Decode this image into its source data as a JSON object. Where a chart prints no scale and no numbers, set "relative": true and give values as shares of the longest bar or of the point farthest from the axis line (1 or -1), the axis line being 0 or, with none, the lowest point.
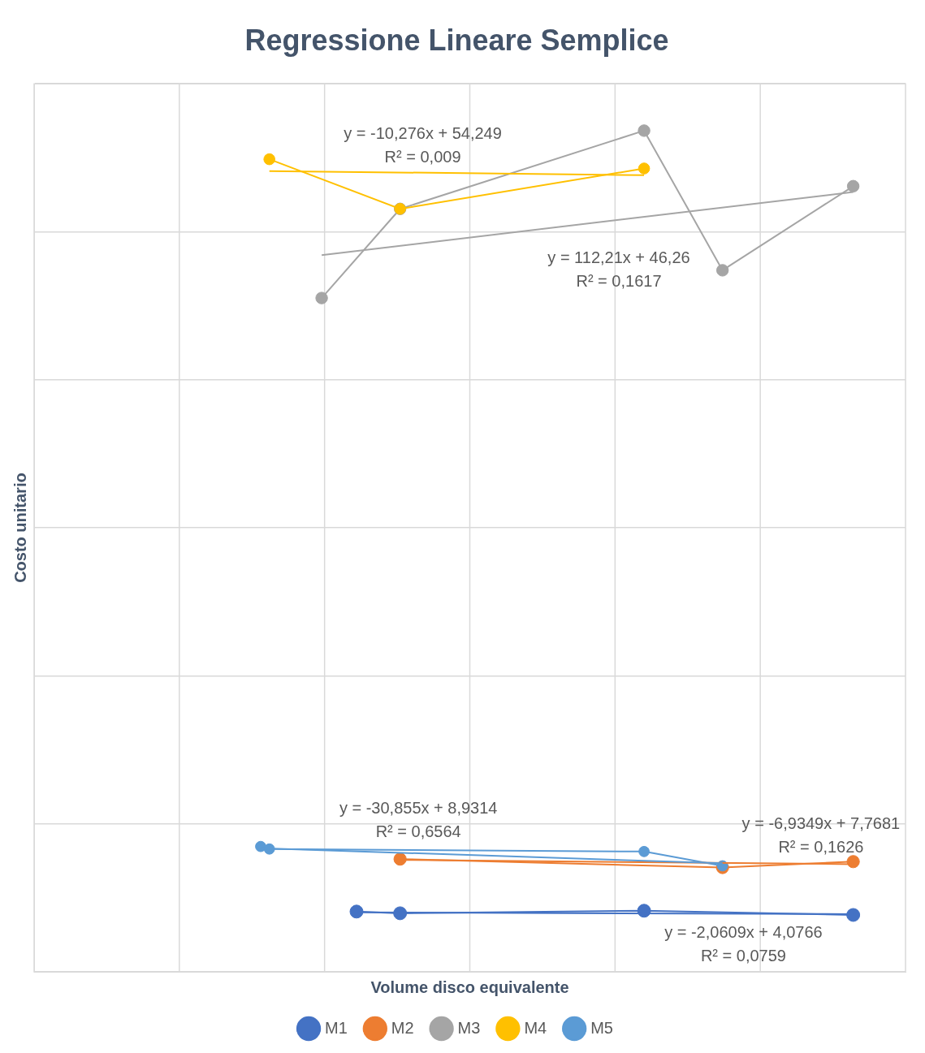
{
  "chart_data": {
    "type": "line",
    "title": "Regressione Lineare Semplice",
    "xlabel": "Volume disco equivalente",
    "ylabel": "Costo unitario",
    "relative": true,
    "grid": true,
    "legend": "bottom",
    "marker": "circle",
    "line_style": "solid",
    "categories": [
      null,
      null,
      null,
      null,
      null,
      null,
      null,
      null,
      null,
      null,
      null,
      null,
      null,
      null,
      null,
      null,
      null,
      null,
      null,
      null,
      null,
      null,
      null,
      null,
      null,
      null,
      null,
      null,
      null,
      null,
      null,
      null,
      null,
      null,
      null,
      null,
      null,
      null,
      null,
      null,
      null,
      null,
      null,
      null,
      null,
      null,
      null,
      null,
      null,
      null,
      null,
      null,
      null,
      null,
      null,
      null,
      null,
      null,
      null,
      null,
      null,
      null,
      null,
      null,
      null,
      null,
      null,
      null,
      null,
      null,
      null,
      null,
      null,
      null,
      null,
      null,
      null,
      null,
      null,
      null,
      null,
      null,
      null,
      null,
      null,
      null,
      null,
      null,
      null,
      null,
      null,
      null,
      null,
      null,
      null,
      null,
      null,
      null,
      null,
      null,
      null
    ],
    "series": [
      {
        "name": "M1",
        "color": "#4472c4",
        "values": [
          null,
          null,
          null,
          null,
          null,
          null,
          null,
          null,
          null,
          null,
          null,
          null,
          null,
          null,
          null,
          null,
          null,
          null,
          null,
          null,
          null,
          null,
          null,
          null,
          null,
          null,
          null,
          null,
          null,
          null,
          null,
          null,
          null,
          null,
          null,
          null,
          null,
          0.0716,
          null,
          null,
          null,
          null,
          0.0696,
          null,
          null,
          null,
          null,
          null,
          null,
          null,
          null,
          null,
          null,
          null,
          null,
          null,
          null,
          null,
          null,
          null,
          null,
          null,
          null,
          null,
          null,
          null,
          null,
          null,
          null,
          null,
          0.0726,
          null,
          null,
          null,
          null,
          null,
          null,
          null,
          null,
          null,
          null,
          null,
          null,
          null,
          null,
          null,
          null,
          null,
          null,
          null,
          null,
          null,
          null,
          null,
          0.0676,
          null,
          null,
          null,
          null,
          null,
          null
        ]
      },
      {
        "name": "M2",
        "color": "#ed7d31",
        "values": [
          null,
          null,
          null,
          null,
          null,
          null,
          null,
          null,
          null,
          null,
          null,
          null,
          null,
          null,
          null,
          null,
          null,
          null,
          null,
          null,
          null,
          null,
          null,
          null,
          null,
          null,
          null,
          null,
          null,
          null,
          null,
          null,
          null,
          null,
          null,
          null,
          null,
          null,
          null,
          null,
          null,
          null,
          0.134,
          null,
          null,
          null,
          null,
          null,
          null,
          null,
          null,
          null,
          null,
          null,
          null,
          null,
          null,
          null,
          null,
          null,
          null,
          null,
          null,
          null,
          null,
          null,
          null,
          null,
          null,
          null,
          null,
          null,
          null,
          null,
          null,
          null,
          null,
          null,
          null,
          0.124,
          null,
          null,
          null,
          null,
          null,
          null,
          null,
          null,
          null,
          null,
          null,
          null,
          null,
          null,
          0.131,
          null,
          null,
          null,
          null,
          null,
          null
        ]
      },
      {
        "name": "M3",
        "color": "#a5a5a5",
        "values": [
          null,
          null,
          null,
          null,
          null,
          null,
          null,
          null,
          null,
          null,
          null,
          null,
          null,
          null,
          null,
          null,
          null,
          null,
          null,
          null,
          null,
          null,
          null,
          null,
          null,
          null,
          null,
          null,
          null,
          null,
          null,
          null,
          null,
          0.801,
          null,
          null,
          null,
          null,
          null,
          null,
          null,
          null,
          0.907,
          null,
          null,
          null,
          null,
          null,
          null,
          null,
          null,
          null,
          null,
          null,
          null,
          null,
          null,
          null,
          null,
          null,
          null,
          null,
          null,
          null,
          null,
          null,
          null,
          null,
          null,
          null,
          1.0,
          null,
          null,
          null,
          null,
          null,
          null,
          null,
          null,
          0.834,
          null,
          null,
          null,
          null,
          null,
          null,
          null,
          null,
          null,
          null,
          null,
          null,
          null,
          null,
          0.934,
          null,
          null,
          null,
          null,
          null,
          null
        ]
      },
      {
        "name": "M4",
        "color": "#ffc000",
        "values": [
          null,
          null,
          null,
          null,
          null,
          null,
          null,
          null,
          null,
          null,
          null,
          null,
          null,
          null,
          null,
          null,
          null,
          null,
          null,
          null,
          null,
          null,
          null,
          null,
          null,
          null,
          null,
          0.966,
          null,
          null,
          null,
          null,
          null,
          null,
          null,
          null,
          null,
          null,
          null,
          null,
          null,
          null,
          0.907,
          null,
          null,
          null,
          null,
          null,
          null,
          null,
          null,
          null,
          null,
          null,
          null,
          null,
          null,
          null,
          null,
          null,
          null,
          null,
          null,
          null,
          null,
          null,
          null,
          null,
          null,
          null,
          0.955,
          null,
          null,
          null,
          null,
          null,
          null,
          null,
          null,
          null,
          null,
          null,
          null,
          null,
          null,
          null,
          null,
          null,
          null,
          null,
          null,
          null,
          null,
          null,
          null,
          null,
          null,
          null,
          null,
          null,
          null
        ]
      },
      {
        "name": "M5",
        "color": "#5b9bd5",
        "values": [
          null,
          null,
          null,
          null,
          null,
          null,
          null,
          null,
          null,
          null,
          null,
          null,
          null,
          null,
          null,
          null,
          null,
          null,
          null,
          null,
          null,
          null,
          null,
          null,
          null,
          null,
          0.149,
          0.146,
          null,
          null,
          null,
          null,
          null,
          null,
          null,
          null,
          null,
          null,
          null,
          null,
          null,
          null,
          null,
          null,
          null,
          null,
          null,
          null,
          null,
          null,
          null,
          null,
          null,
          null,
          null,
          null,
          null,
          null,
          null,
          null,
          null,
          null,
          null,
          null,
          null,
          null,
          null,
          null,
          null,
          null,
          0.143,
          null,
          null,
          null,
          null,
          null,
          null,
          null,
          null,
          0.126,
          null,
          null,
          null,
          null,
          null,
          null,
          null,
          null,
          null,
          null,
          null,
          null,
          null,
          null,
          null,
          null,
          null,
          null,
          null,
          null,
          null
        ]
      },
      {
        "color": "#4472c4",
        "marker": "none",
        "values": [
          null,
          null,
          null,
          null,
          null,
          null,
          null,
          null,
          null,
          null,
          null,
          null,
          null,
          null,
          null,
          null,
          null,
          null,
          null,
          null,
          null,
          null,
          null,
          null,
          null,
          null,
          null,
          null,
          null,
          null,
          null,
          null,
          null,
          null,
          null,
          null,
          null,
          0.0706,
          null,
          null,
          null,
          null,
          null,
          null,
          null,
          null,
          null,
          null,
          null,
          null,
          null,
          null,
          null,
          null,
          null,
          null,
          null,
          null,
          null,
          null,
          null,
          null,
          null,
          null,
          null,
          null,
          null,
          null,
          null,
          null,
          null,
          null,
          null,
          null,
          null,
          null,
          null,
          null,
          null,
          null,
          null,
          null,
          null,
          null,
          null,
          null,
          null,
          null,
          null,
          null,
          null,
          null,
          null,
          null,
          0.0686,
          null,
          null,
          null,
          null,
          null,
          null
        ]
      },
      {
        "color": "#ed7d31",
        "marker": "none",
        "values": [
          null,
          null,
          null,
          null,
          null,
          null,
          null,
          null,
          null,
          null,
          null,
          null,
          null,
          null,
          null,
          null,
          null,
          null,
          null,
          null,
          null,
          null,
          null,
          null,
          null,
          null,
          null,
          null,
          null,
          null,
          null,
          null,
          null,
          null,
          null,
          null,
          null,
          null,
          null,
          null,
          null,
          null,
          0.133,
          null,
          null,
          null,
          null,
          null,
          null,
          null,
          null,
          null,
          null,
          null,
          null,
          null,
          null,
          null,
          null,
          null,
          null,
          null,
          null,
          null,
          null,
          null,
          null,
          null,
          null,
          null,
          null,
          null,
          null,
          null,
          null,
          null,
          null,
          null,
          null,
          null,
          null,
          null,
          null,
          null,
          null,
          null,
          null,
          null,
          null,
          null,
          null,
          null,
          null,
          null,
          0.128,
          null,
          null,
          null,
          null,
          null,
          null
        ]
      },
      {
        "color": "#a5a5a5",
        "marker": "none",
        "values": [
          null,
          null,
          null,
          null,
          null,
          null,
          null,
          null,
          null,
          null,
          null,
          null,
          null,
          null,
          null,
          null,
          null,
          null,
          null,
          null,
          null,
          null,
          null,
          null,
          null,
          null,
          null,
          null,
          null,
          null,
          null,
          null,
          null,
          0.852,
          null,
          null,
          null,
          null,
          null,
          null,
          null,
          null,
          null,
          null,
          null,
          null,
          null,
          null,
          null,
          null,
          null,
          null,
          null,
          null,
          null,
          null,
          null,
          null,
          null,
          null,
          null,
          null,
          null,
          null,
          null,
          null,
          null,
          null,
          null,
          null,
          null,
          null,
          null,
          null,
          null,
          null,
          null,
          null,
          null,
          null,
          null,
          null,
          null,
          null,
          null,
          null,
          null,
          null,
          null,
          null,
          null,
          null,
          null,
          null,
          0.927,
          null,
          null,
          null,
          null,
          null,
          null
        ]
      },
      {
        "color": "#ffc000",
        "marker": "none",
        "values": [
          null,
          null,
          null,
          null,
          null,
          null,
          null,
          null,
          null,
          null,
          null,
          null,
          null,
          null,
          null,
          null,
          null,
          null,
          null,
          null,
          null,
          null,
          null,
          null,
          null,
          null,
          null,
          0.952,
          null,
          null,
          null,
          null,
          null,
          null,
          null,
          null,
          null,
          null,
          null,
          null,
          null,
          null,
          null,
          null,
          null,
          null,
          null,
          null,
          null,
          null,
          null,
          null,
          null,
          null,
          null,
          null,
          null,
          null,
          null,
          null,
          null,
          null,
          null,
          null,
          null,
          null,
          null,
          null,
          null,
          null,
          0.947,
          null,
          null,
          null,
          null,
          null,
          null,
          null,
          null,
          null,
          null,
          null,
          null,
          null,
          null,
          null,
          null,
          null,
          null,
          null,
          null,
          null,
          null,
          null,
          null,
          null,
          null,
          null,
          null,
          null,
          null
        ]
      },
      {
        "color": "#5b9bd5",
        "marker": "none",
        "values": [
          null,
          null,
          null,
          null,
          null,
          null,
          null,
          null,
          null,
          null,
          null,
          null,
          null,
          null,
          null,
          null,
          null,
          null,
          null,
          null,
          null,
          null,
          null,
          null,
          null,
          null,
          0.147,
          null,
          null,
          null,
          null,
          null,
          null,
          null,
          null,
          null,
          null,
          null,
          null,
          null,
          null,
          null,
          null,
          null,
          null,
          null,
          null,
          null,
          null,
          null,
          null,
          null,
          null,
          null,
          null,
          null,
          null,
          null,
          null,
          null,
          null,
          null,
          null,
          null,
          null,
          null,
          null,
          null,
          null,
          null,
          null,
          null,
          null,
          null,
          null,
          null,
          null,
          null,
          null,
          0.129,
          null,
          null,
          null,
          null,
          null,
          null,
          null,
          null,
          null,
          null,
          null,
          null,
          null,
          null,
          null,
          null,
          null,
          null,
          null,
          null,
          null
        ]
      }
    ],
    "annotations": [
      "y = -10,276x + 54,249\nR² = 0,009",
      "y = 112,21x + 46,26\nR² = 0,1617",
      "y = -30,855x + 8,9314\nR² = 0,6564",
      "y = -6,9349x + 7,7681\nR² = 0,1626",
      "y = -2,0609x + 4,0766\nR² = 0,0759"
    ]
  }
}
